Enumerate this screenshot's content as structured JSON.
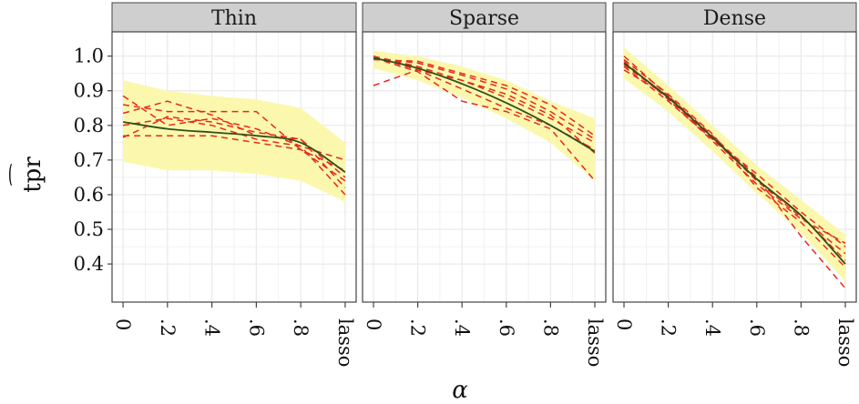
{
  "chart_data": {
    "type": "line",
    "xlabel": "α",
    "ylabel": "tpr",
    "ylabel_hat": "⌢",
    "x_tick_labels": [
      "0",
      ".2",
      ".4",
      ".6",
      ".8",
      "lasso"
    ],
    "y_ticks": [
      0.4,
      0.5,
      0.6,
      0.7,
      0.8,
      0.9,
      1.0
    ],
    "y_tick_labels": [
      "0.4",
      "0.5",
      "0.6",
      "0.7",
      "0.8",
      "0.9",
      "1.0"
    ],
    "ylim": [
      0.29,
      1.07
    ],
    "grid": true,
    "colors": {
      "band": "#fbf8ad",
      "mean_line": "#2f4f1c",
      "dashed_lines": "#e8281e",
      "strip_bg": "#cfcfcf",
      "panel_border": "#444444",
      "grid": "#e9e9e9"
    },
    "panels": [
      {
        "strip": "Thin",
        "band_upper": [
          0.93,
          0.9,
          0.885,
          0.875,
          0.85,
          0.75
        ],
        "band_lower": [
          0.695,
          0.67,
          0.67,
          0.66,
          0.64,
          0.58
        ],
        "mean": [
          0.81,
          0.79,
          0.78,
          0.77,
          0.75,
          0.665
        ],
        "dashed": [
          [
            0.885,
            0.8,
            0.82,
            0.79,
            0.74,
            0.6
          ],
          [
            0.86,
            0.84,
            0.84,
            0.84,
            0.73,
            0.64
          ],
          [
            0.835,
            0.87,
            0.83,
            0.77,
            0.76,
            0.62
          ],
          [
            0.8,
            0.82,
            0.8,
            0.76,
            0.74,
            0.7
          ],
          [
            0.77,
            0.77,
            0.77,
            0.75,
            0.73,
            0.67
          ],
          [
            0.765,
            0.825,
            0.81,
            0.78,
            0.76,
            0.65
          ]
        ]
      },
      {
        "strip": "Sparse",
        "band_upper": [
          1.015,
          1.0,
          0.97,
          0.93,
          0.87,
          0.82
        ],
        "band_lower": [
          0.965,
          0.93,
          0.88,
          0.82,
          0.75,
          0.64
        ],
        "mean": [
          0.995,
          0.965,
          0.92,
          0.865,
          0.8,
          0.725
        ],
        "dashed": [
          [
            0.915,
            0.96,
            0.93,
            0.88,
            0.82,
            0.75
          ],
          [
            0.995,
            0.98,
            0.945,
            0.905,
            0.84,
            0.76
          ],
          [
            1.0,
            0.97,
            0.93,
            0.89,
            0.83,
            0.72
          ],
          [
            0.995,
            0.955,
            0.87,
            0.84,
            0.79,
            0.64
          ],
          [
            0.99,
            0.985,
            0.95,
            0.915,
            0.86,
            0.77
          ],
          [
            1.0,
            0.96,
            0.905,
            0.85,
            0.8,
            0.73
          ]
        ]
      },
      {
        "strip": "Dense",
        "band_upper": [
          1.025,
          0.915,
          0.8,
          0.685,
          0.585,
          0.485
        ],
        "band_lower": [
          0.935,
          0.84,
          0.725,
          0.605,
          0.49,
          0.35
        ],
        "mean": [
          0.98,
          0.88,
          0.765,
          0.645,
          0.54,
          0.4
        ],
        "dashed": [
          [
            1.0,
            0.885,
            0.765,
            0.64,
            0.535,
            0.43
          ],
          [
            0.97,
            0.87,
            0.76,
            0.66,
            0.55,
            0.45
          ],
          [
            0.99,
            0.89,
            0.775,
            0.62,
            0.52,
            0.39
          ],
          [
            0.96,
            0.885,
            0.77,
            0.65,
            0.48,
            0.33
          ],
          [
            0.985,
            0.875,
            0.755,
            0.63,
            0.53,
            0.46
          ],
          [
            0.975,
            0.88,
            0.76,
            0.645,
            0.54,
            0.41
          ]
        ]
      }
    ]
  }
}
